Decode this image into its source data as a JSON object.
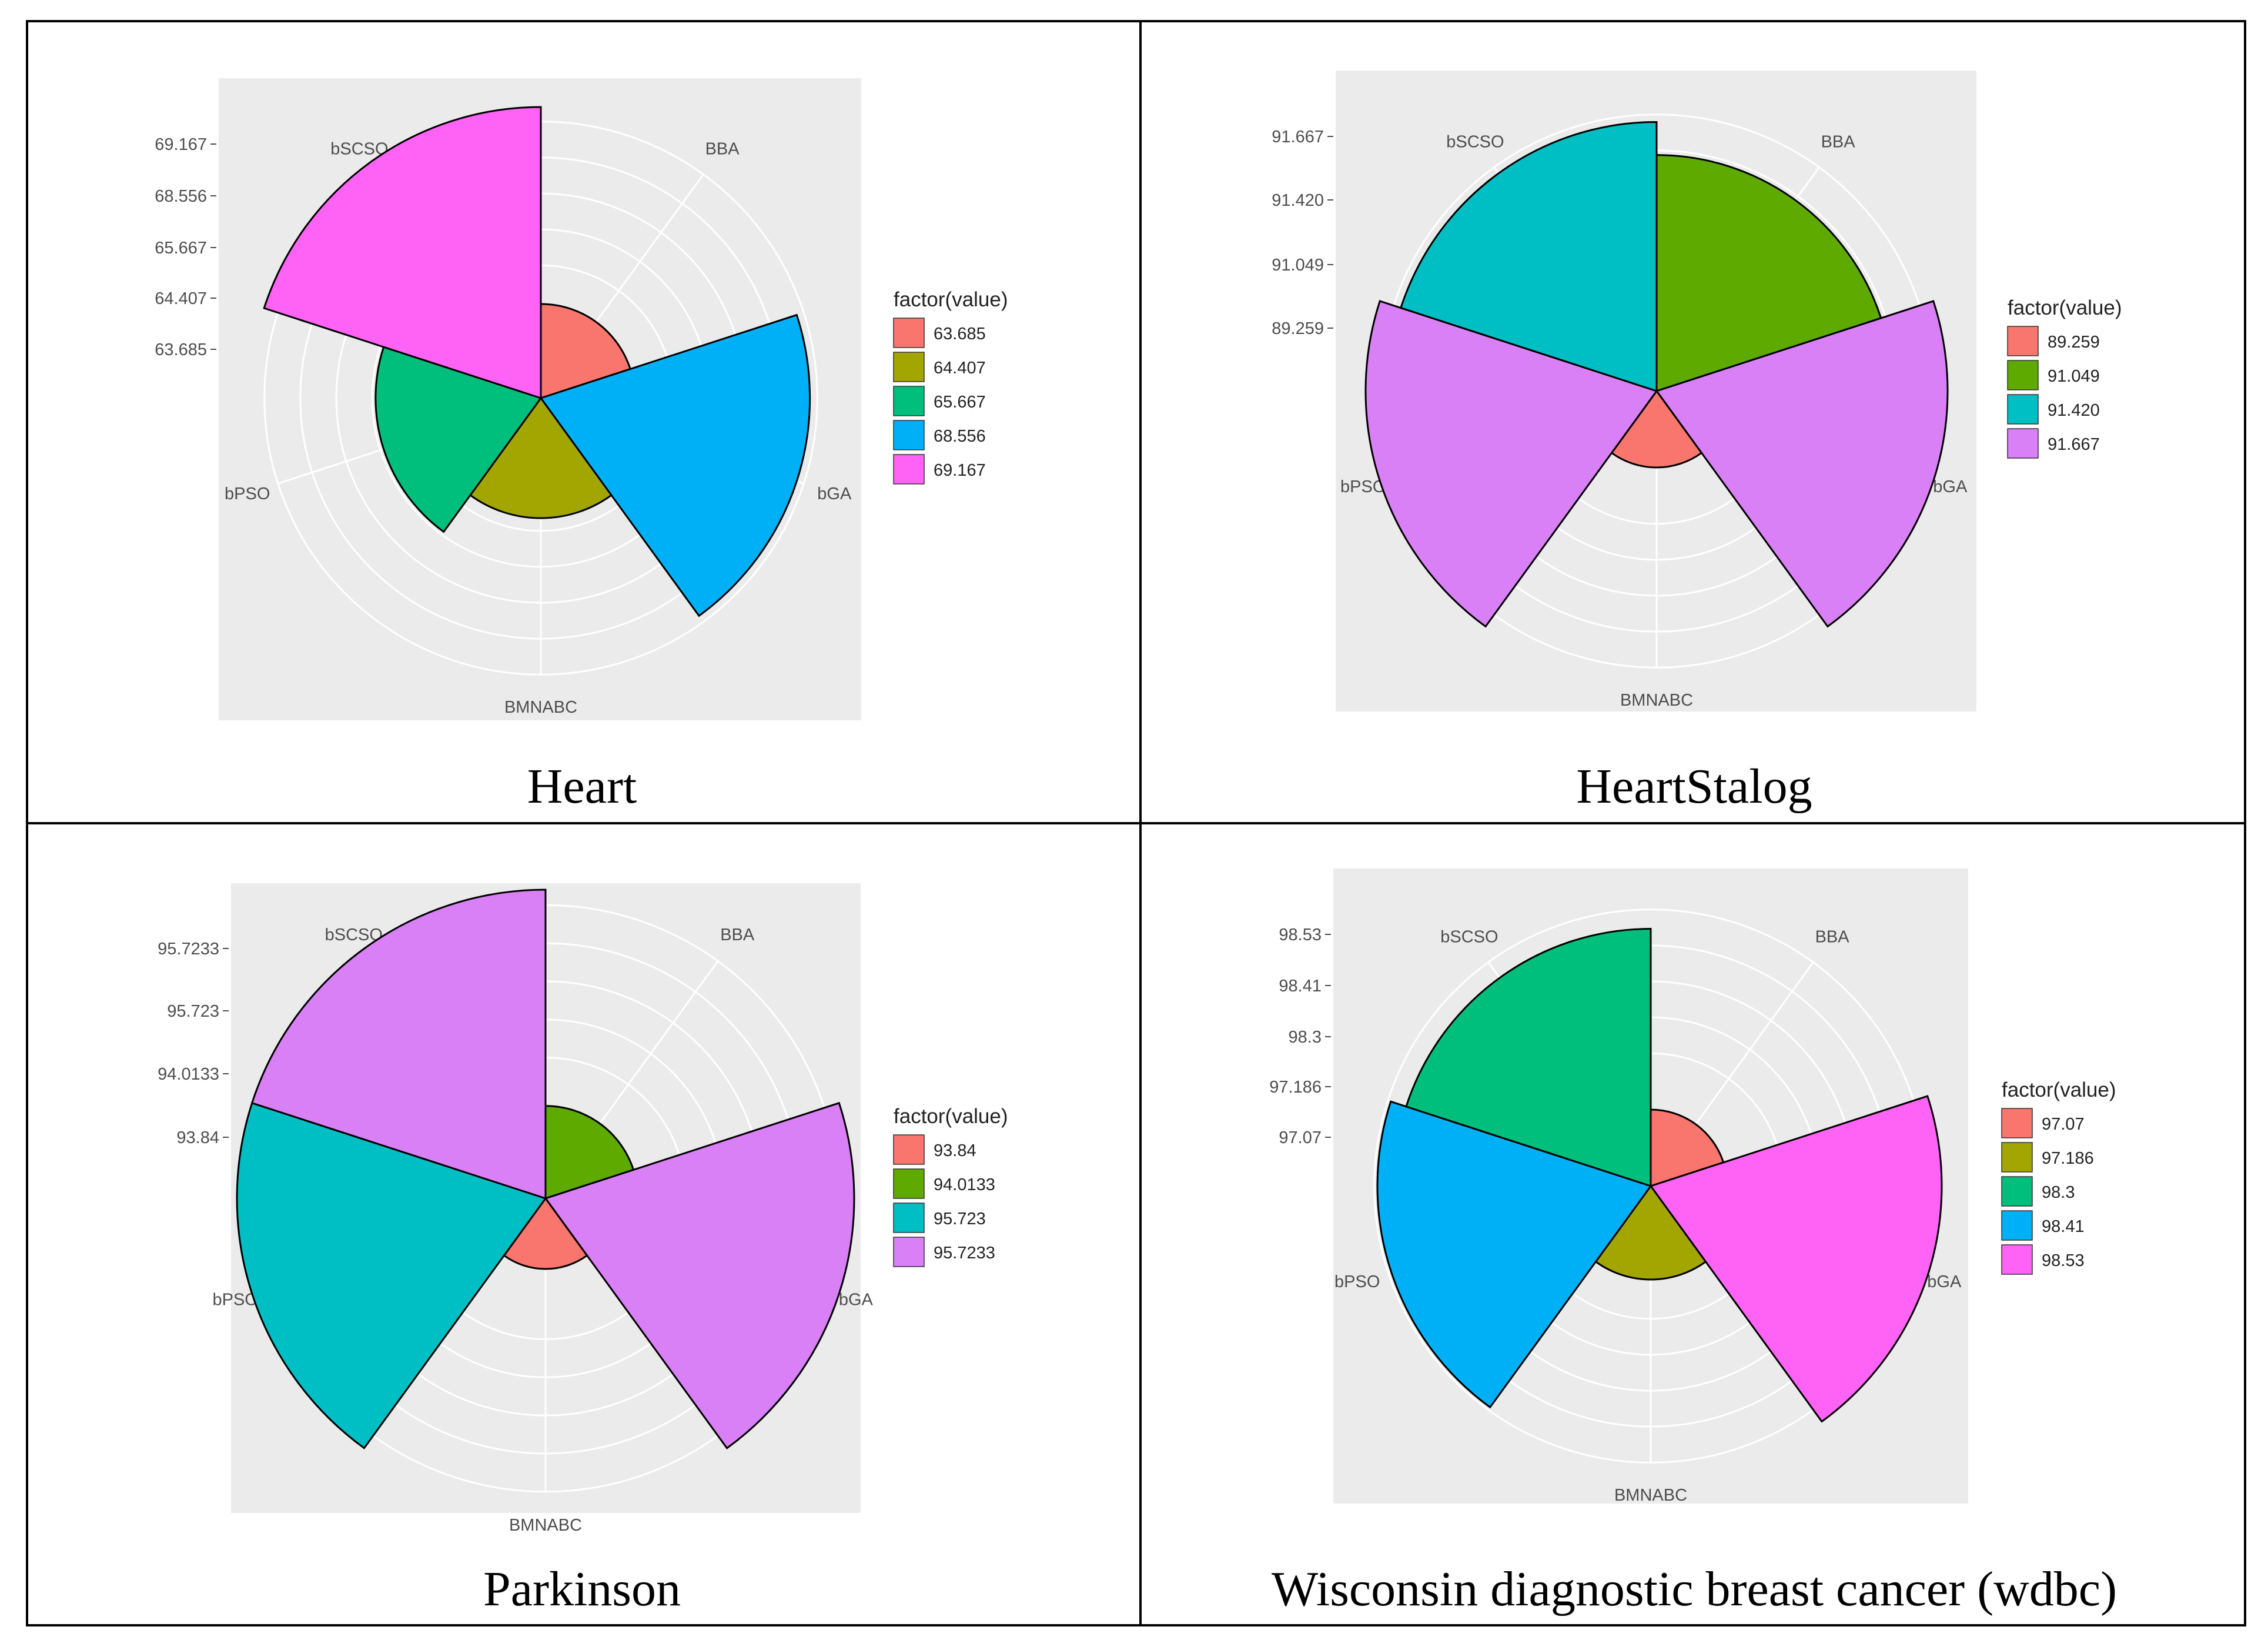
{
  "chart_data": [
    {
      "type": "polar-bar",
      "title": "Heart",
      "categories": [
        "BBA",
        "bGA",
        "BMNABC",
        "bPSO",
        "bSCSO"
      ],
      "values": [
        63.685,
        68.556,
        64.407,
        65.667,
        69.167
      ],
      "y_ticks": [
        "69.167",
        "68.556",
        "65.667",
        "64.407",
        "63.685"
      ],
      "legend_title": "factor(value)",
      "legend": [
        {
          "label": "63.685",
          "color": "#F8766D"
        },
        {
          "label": "64.407",
          "color": "#A3A500"
        },
        {
          "label": "65.667",
          "color": "#00BF7D"
        },
        {
          "label": "68.556",
          "color": "#00B0F6"
        },
        {
          "label": "69.167",
          "color": "#FF63F6"
        }
      ]
    },
    {
      "type": "polar-bar",
      "title": "HeartStalog",
      "categories": [
        "BBA",
        "bGA",
        "BMNABC",
        "bPSO",
        "bSCSO"
      ],
      "values": [
        91.049,
        91.667,
        89.259,
        91.667,
        91.42
      ],
      "y_ticks": [
        "91.667",
        "91.420",
        "91.049",
        "89.259"
      ],
      "legend_title": "factor(value)",
      "legend": [
        {
          "label": "89.259",
          "color": "#F8766D"
        },
        {
          "label": "91.049",
          "color": "#5FAA00"
        },
        {
          "label": "91.420",
          "color": "#00BFC4"
        },
        {
          "label": "91.667",
          "color": "#DA80F6"
        }
      ]
    },
    {
      "type": "polar-bar",
      "title": "Parkinson",
      "categories": [
        "BBA",
        "bGA",
        "BMNABC",
        "bPSO",
        "bSCSO"
      ],
      "values": [
        94.0133,
        95.7233,
        93.84,
        95.723,
        95.7233
      ],
      "y_ticks": [
        "95.7233",
        "95.723",
        "94.0133",
        "93.84"
      ],
      "legend_title": "factor(value)",
      "legend": [
        {
          "label": "93.84",
          "color": "#F8766D"
        },
        {
          "label": "94.0133",
          "color": "#5FAA00"
        },
        {
          "label": "95.723",
          "color": "#00BFC4"
        },
        {
          "label": "95.7233",
          "color": "#DA80F6"
        }
      ]
    },
    {
      "type": "polar-bar",
      "title": "Wisconsin diagnostic breast cancer (wdbc)",
      "categories": [
        "BBA",
        "bGA",
        "BMNABC",
        "bPSO",
        "bSCSO"
      ],
      "values": [
        97.07,
        98.53,
        97.186,
        98.41,
        98.3
      ],
      "y_ticks": [
        "98.53",
        "98.41",
        "98.3",
        "97.186",
        "97.07"
      ],
      "legend_title": "factor(value)",
      "legend": [
        {
          "label": "97.07",
          "color": "#F8766D"
        },
        {
          "label": "97.186",
          "color": "#A3A500"
        },
        {
          "label": "98.3",
          "color": "#00BF7D"
        },
        {
          "label": "98.41",
          "color": "#00B0F6"
        },
        {
          "label": "98.53",
          "color": "#FF63F6"
        }
      ]
    }
  ]
}
